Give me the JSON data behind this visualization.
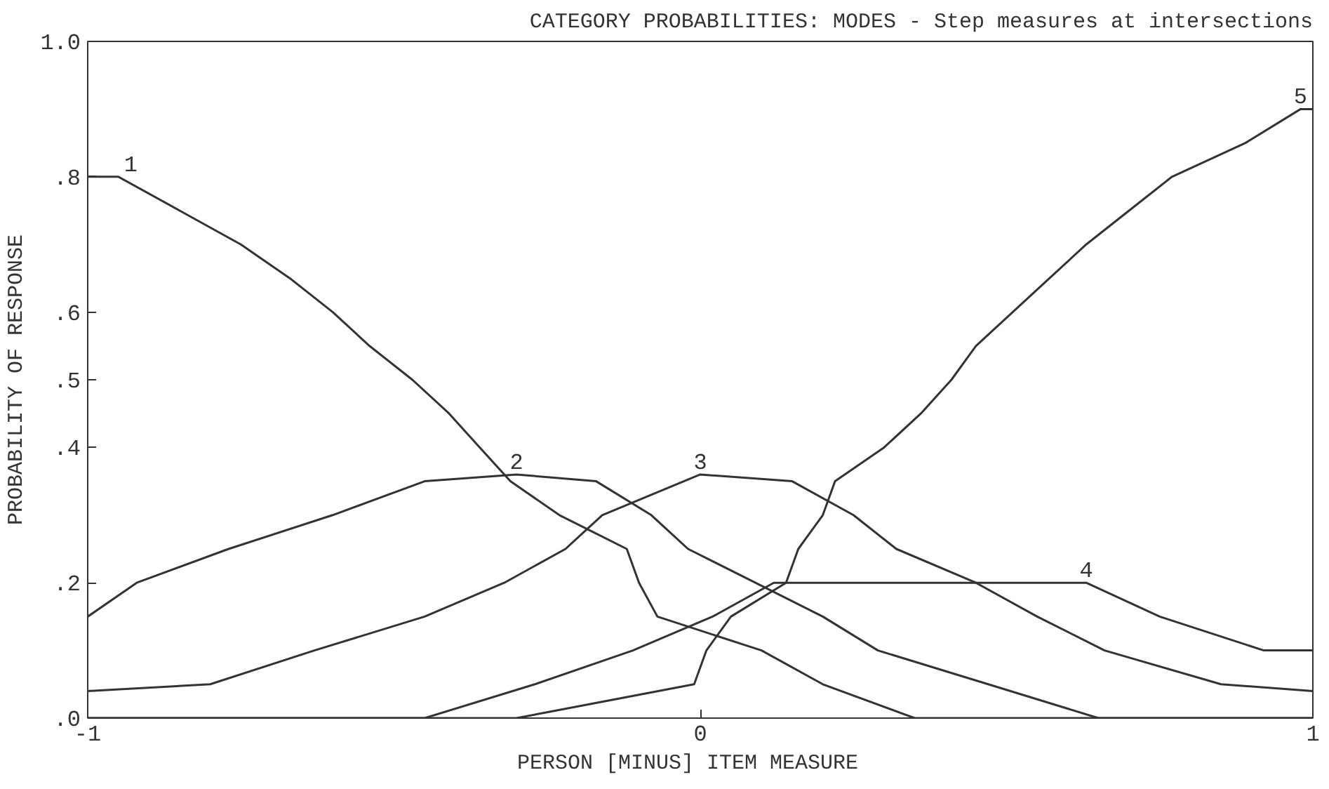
{
  "chart_data": {
    "type": "line",
    "marker": "none",
    "title": "CATEGORY PROBABILITIES: MODES - Step measures at intersections",
    "xlabel": "PERSON [MINUS]  ITEM  MEASURE",
    "ylabel": "PROBABILITY OF RESPONSE",
    "xlim": [
      -1,
      1
    ],
    "xticks": [
      {
        "value": -1,
        "label": "-1"
      },
      0,
      1
    ],
    "ylim": [
      0,
      1
    ],
    "yticks": [
      {
        "value": 0,
        "label": ".0"
      },
      {
        "value": 0.2,
        "label": ".2"
      },
      {
        "value": 0.4,
        "label": ".4"
      },
      {
        "value": 0.5,
        "label": ".5"
      },
      {
        "value": 0.6,
        "label": ".6"
      },
      {
        "value": 0.8,
        "label": ".8"
      },
      {
        "value": 1,
        "label": "1.0"
      }
    ],
    "grid": false,
    "series": [
      {
        "name": "1",
        "color": "#333333",
        "x": [
          -1,
          -0.95,
          -0.85,
          -0.75,
          -0.67,
          -0.6,
          -0.54,
          -0.47,
          -0.41,
          -0.36,
          -0.31,
          -0.23,
          -0.12,
          -0.1,
          -0.07,
          0.1,
          0.2,
          0.35,
          1
        ],
        "values": [
          0.8,
          0.8,
          0.75,
          0.7,
          0.65,
          0.6,
          0.55,
          0.5,
          0.45,
          0.4,
          0.35,
          0.3,
          0.25,
          0.2,
          0.15,
          0.1,
          0.05,
          0,
          0
        ]
      },
      {
        "name": "2",
        "color": "#333333",
        "x": [
          -1,
          -0.92,
          -0.77,
          -0.6,
          -0.45,
          -0.3,
          -0.17,
          -0.08,
          -0.02,
          0.09,
          0.2,
          0.29,
          0.47,
          0.65,
          1
        ],
        "values": [
          0.15,
          0.2,
          0.25,
          0.3,
          0.35,
          0.36,
          0.35,
          0.3,
          0.25,
          0.2,
          0.15,
          0.1,
          0.05,
          0,
          0
        ]
      },
      {
        "name": "3",
        "color": "#333333",
        "x": [
          -1,
          -0.8,
          -0.63,
          -0.45,
          -0.32,
          -0.22,
          -0.16,
          0.0,
          0.15,
          0.25,
          0.32,
          0.45,
          0.55,
          0.66,
          0.85,
          1
        ],
        "values": [
          0.04,
          0.05,
          0.1,
          0.15,
          0.2,
          0.25,
          0.3,
          0.36,
          0.35,
          0.3,
          0.25,
          0.2,
          0.15,
          0.1,
          0.05,
          0.04
        ]
      },
      {
        "name": "4",
        "color": "#333333",
        "x": [
          -1,
          -0.45,
          -0.27,
          -0.11,
          0.02,
          0.12,
          0.3,
          0.5,
          0.63,
          0.75,
          0.92,
          1
        ],
        "values": [
          0,
          0,
          0.05,
          0.1,
          0.15,
          0.2,
          0.2,
          0.2,
          0.2,
          0.15,
          0.1,
          0.1
        ]
      },
      {
        "name": "5",
        "color": "#333333",
        "x": [
          -1,
          -0.3,
          -0.01,
          0.01,
          0.05,
          0.14,
          0.16,
          0.2,
          0.22,
          0.3,
          0.36,
          0.41,
          0.45,
          0.51,
          0.57,
          0.63,
          0.7,
          0.77,
          0.89,
          0.98,
          1
        ],
        "values": [
          0,
          0,
          0.05,
          0.1,
          0.15,
          0.2,
          0.25,
          0.3,
          0.35,
          0.4,
          0.45,
          0.5,
          0.55,
          0.6,
          0.65,
          0.7,
          0.75,
          0.8,
          0.85,
          0.9,
          0.9
        ]
      }
    ]
  }
}
